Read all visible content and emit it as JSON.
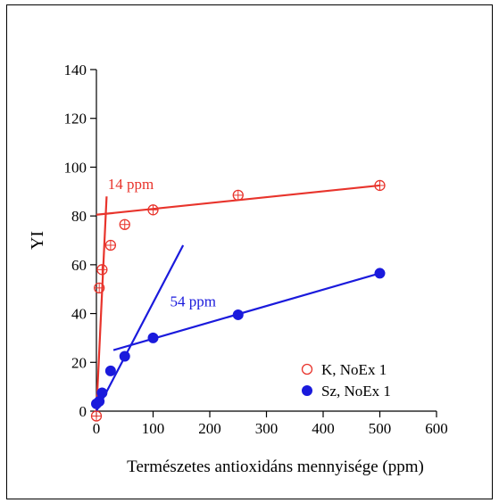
{
  "chart_data": {
    "type": "scatter",
    "xlabel": "Természetes antioxidáns mennyisége (ppm)",
    "ylabel": "YI",
    "xlim": [
      0,
      600
    ],
    "ylim": [
      0,
      140
    ],
    "xticks": [
      0,
      100,
      200,
      300,
      400,
      500,
      600
    ],
    "yticks": [
      0,
      20,
      40,
      60,
      80,
      100,
      120,
      140
    ],
    "grid": false,
    "legend_position": "bottom-right",
    "series": [
      {
        "name": "K, NoEx 1",
        "color": "#e8342c",
        "marker": "open-circle-cross",
        "x": [
          0,
          5,
          10,
          25,
          50,
          100,
          250,
          500
        ],
        "y": [
          -2,
          50.5,
          58,
          68,
          76.5,
          82.5,
          88.5,
          92.5
        ]
      },
      {
        "name": "Sz, NoEx 1",
        "color": "#1a1adc",
        "marker": "filled-circle",
        "x": [
          0,
          5,
          10,
          25,
          50,
          100,
          250,
          500
        ],
        "y": [
          3,
          4,
          7.5,
          16.5,
          22.5,
          30,
          39.5,
          56.5
        ]
      }
    ],
    "fit_lines": [
      {
        "series": "K, NoEx 1",
        "color": "#e8342c",
        "points": [
          [
            0,
            0
          ],
          [
            18,
            88
          ]
        ]
      },
      {
        "series": "K, NoEx 1",
        "color": "#e8342c",
        "points": [
          [
            0,
            80.5
          ],
          [
            500,
            92.5
          ]
        ]
      },
      {
        "series": "Sz, NoEx 1",
        "color": "#1a1adc",
        "points": [
          [
            0,
            0
          ],
          [
            153,
            68
          ]
        ]
      },
      {
        "series": "Sz, NoEx 1",
        "color": "#1a1adc",
        "points": [
          [
            30,
            25
          ],
          [
            500,
            56.5
          ]
        ]
      }
    ],
    "annotations": [
      {
        "text": "14 ppm",
        "x": 20,
        "y": 91,
        "color": "#e8342c"
      },
      {
        "text": "54 ppm",
        "x": 130,
        "y": 43,
        "color": "#1a1adc"
      }
    ]
  }
}
